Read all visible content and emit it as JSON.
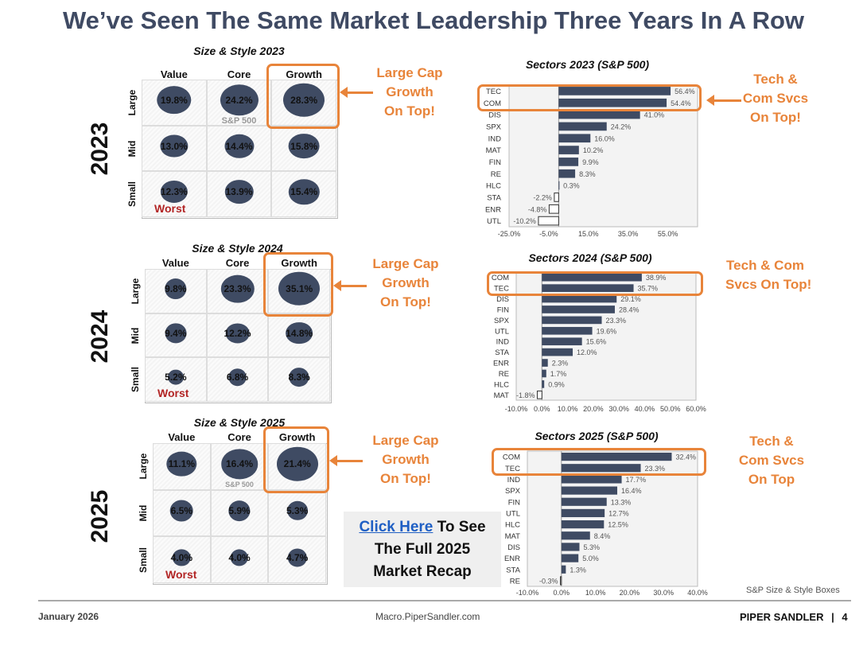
{
  "title": "We’ve Seen The Same Market Leadership Three Years In A Row",
  "size_style": [
    {
      "year": "2023",
      "title": "Size & Style 2023",
      "columns": [
        "Value",
        "Core",
        "Growth"
      ],
      "rows": [
        "Large",
        "Mid",
        "Small"
      ],
      "values": [
        [
          "19.8%",
          "24.2%",
          "28.3%"
        ],
        [
          "13.0%",
          "14.4%",
          "15.8%"
        ],
        [
          "12.3%",
          "13.9%",
          "15.4%"
        ]
      ],
      "benchmark_label": "S&P 500",
      "worst_label": "Worst",
      "note": [
        "Large Cap",
        "Growth",
        "On Top!"
      ]
    },
    {
      "year": "2024",
      "title": "Size & Style 2024",
      "columns": [
        "Value",
        "Core",
        "Growth"
      ],
      "rows": [
        "Large",
        "Mid",
        "Small"
      ],
      "values": [
        [
          "9.8%",
          "23.3%",
          "35.1%"
        ],
        [
          "9.4%",
          "12.2%",
          "14.8%"
        ],
        [
          "5.2%",
          "6.8%",
          "8.3%"
        ]
      ],
      "benchmark_label": "",
      "worst_label": "Worst",
      "note": [
        "Large Cap",
        "Growth",
        "On Top!"
      ]
    },
    {
      "year": "2025",
      "title": "Size & Style 2025",
      "columns": [
        "Value",
        "Core",
        "Growth"
      ],
      "rows": [
        "Large",
        "Mid",
        "Small"
      ],
      "values": [
        [
          "11.1%",
          "16.4%",
          "21.4%"
        ],
        [
          "6.5%",
          "5.9%",
          "5.3%"
        ],
        [
          "4.0%",
          "4.0%",
          "4.7%"
        ]
      ],
      "benchmark_label": "S&P 500",
      "worst_label": "Worst",
      "note": [
        "Large Cap",
        "Growth",
        "On Top!"
      ]
    }
  ],
  "chart_data": [
    {
      "type": "bar",
      "orientation": "horizontal",
      "title": "Sectors 2023 (S&P 500)",
      "categories": [
        "TEC",
        "COM",
        "DIS",
        "SPX",
        "IND",
        "MAT",
        "FIN",
        "RE",
        "HLC",
        "STA",
        "ENR",
        "UTL"
      ],
      "values": [
        56.4,
        54.4,
        41.0,
        24.2,
        16.0,
        10.2,
        9.9,
        8.3,
        0.3,
        -2.2,
        -4.8,
        -10.2
      ],
      "xlim": [
        -25,
        70
      ],
      "xticks": [
        "-25.0%",
        "-5.0%",
        "15.0%",
        "35.0%",
        "55.0%"
      ],
      "xtick_values": [
        -25,
        -5,
        15,
        35,
        55
      ],
      "highlighted": [
        "TEC",
        "COM"
      ],
      "note": [
        "Tech &",
        "Com Svcs",
        "On Top!"
      ]
    },
    {
      "type": "bar",
      "orientation": "horizontal",
      "title": "Sectors 2024 (S&P 500)",
      "categories": [
        "COM",
        "TEC",
        "DIS",
        "FIN",
        "SPX",
        "UTL",
        "IND",
        "STA",
        "ENR",
        "RE",
        "HLC",
        "MAT"
      ],
      "values": [
        38.9,
        35.7,
        29.1,
        28.4,
        23.3,
        19.6,
        15.6,
        12.0,
        2.3,
        1.7,
        0.9,
        -1.8
      ],
      "xlim": [
        -10,
        60
      ],
      "xticks": [
        "-10.0%",
        "0.0%",
        "10.0%",
        "20.0%",
        "30.0%",
        "40.0%",
        "50.0%",
        "60.0%"
      ],
      "xtick_values": [
        -10,
        0,
        10,
        20,
        30,
        40,
        50,
        60
      ],
      "highlighted": [
        "COM",
        "TEC"
      ],
      "note": [
        "Tech & Com",
        "Svcs On Top!"
      ]
    },
    {
      "type": "bar",
      "orientation": "horizontal",
      "title": "Sectors 2025 (S&P 500)",
      "categories": [
        "COM",
        "TEC",
        "IND",
        "SPX",
        "FIN",
        "UTL",
        "HLC",
        "MAT",
        "DIS",
        "ENR",
        "STA",
        "RE"
      ],
      "values": [
        32.4,
        23.3,
        17.7,
        16.4,
        13.3,
        12.7,
        12.5,
        8.4,
        5.3,
        5.0,
        1.3,
        -0.3
      ],
      "xlim": [
        -10,
        40
      ],
      "xticks": [
        "-10.0%",
        "0.0%",
        "10.0%",
        "20.0%",
        "30.0%",
        "40.0%"
      ],
      "xtick_values": [
        -10,
        0,
        10,
        20,
        30,
        40
      ],
      "highlighted": [
        "COM",
        "TEC"
      ],
      "note": [
        "Tech &",
        "Com Svcs",
        "On Top"
      ]
    }
  ],
  "colors": {
    "bar": "#3f4b63",
    "accent": "#e8843a",
    "worst": "#b22424",
    "link": "#1f5fc4",
    "title": "#3f4a63"
  },
  "cta": {
    "link": "Click Here",
    "rest": " To See",
    "line2": "The Full 2025",
    "line3": "Market Recap"
  },
  "source_note": "S&P Size & Style Boxes",
  "footer": {
    "date": "January 2026",
    "site": "Macro.PiperSandler.com",
    "brand": "PIPER SANDLER",
    "separator": "|",
    "page": "4"
  }
}
